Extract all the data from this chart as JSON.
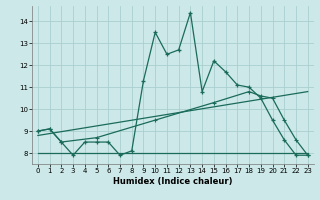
{
  "xlabel": "Humidex (Indice chaleur)",
  "xlim": [
    -0.5,
    23.5
  ],
  "ylim": [
    7.5,
    14.7
  ],
  "xticks": [
    0,
    1,
    2,
    3,
    4,
    5,
    6,
    7,
    8,
    9,
    10,
    11,
    12,
    13,
    14,
    15,
    16,
    17,
    18,
    19,
    20,
    21,
    22,
    23
  ],
  "yticks": [
    8,
    9,
    10,
    11,
    12,
    13,
    14
  ],
  "bg_color": "#cce8e8",
  "line_color": "#1a6b5a",
  "grid_color": "#aacfcf",
  "line1_x": [
    0,
    1,
    2,
    3,
    4,
    5,
    6,
    7,
    8,
    9,
    10,
    11,
    12,
    13,
    14,
    15,
    16,
    17,
    18,
    19,
    20,
    21,
    22,
    23
  ],
  "line1_y": [
    9.0,
    9.1,
    8.5,
    7.9,
    8.5,
    8.5,
    8.5,
    7.9,
    8.1,
    11.3,
    13.5,
    12.5,
    12.7,
    14.4,
    10.8,
    12.2,
    11.7,
    11.1,
    11.0,
    10.5,
    9.5,
    8.6,
    7.9,
    7.9
  ],
  "line2_x": [
    0,
    23
  ],
  "line2_y": [
    8.8,
    10.8
  ],
  "line3_x": [
    0,
    23
  ],
  "line3_y": [
    8.0,
    8.0
  ],
  "line4_x": [
    0,
    1,
    2,
    5,
    10,
    15,
    18,
    19,
    20,
    21,
    22,
    23
  ],
  "line4_y": [
    9.0,
    9.1,
    8.5,
    8.7,
    9.5,
    10.3,
    10.8,
    10.6,
    10.5,
    9.5,
    8.6,
    7.9
  ]
}
